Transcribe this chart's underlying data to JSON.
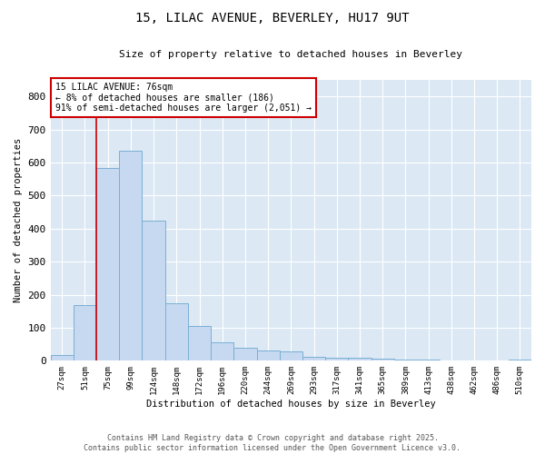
{
  "title_line1": "15, LILAC AVENUE, BEVERLEY, HU17 9UT",
  "title_line2": "Size of property relative to detached houses in Beverley",
  "xlabel": "Distribution of detached houses by size in Beverley",
  "ylabel": "Number of detached properties",
  "categories": [
    "27sqm",
    "51sqm",
    "75sqm",
    "99sqm",
    "124sqm",
    "148sqm",
    "172sqm",
    "196sqm",
    "220sqm",
    "244sqm",
    "269sqm",
    "293sqm",
    "317sqm",
    "341sqm",
    "365sqm",
    "389sqm",
    "413sqm",
    "438sqm",
    "462sqm",
    "486sqm",
    "510sqm"
  ],
  "values": [
    18,
    168,
    583,
    635,
    425,
    175,
    105,
    57,
    40,
    32,
    28,
    13,
    10,
    8,
    6,
    4,
    3,
    2,
    1,
    1,
    5
  ],
  "bar_color": "#c6d9f0",
  "bar_edge_color": "#7bafd4",
  "bar_width": 1.0,
  "vline_index": 2,
  "vline_color": "#cc0000",
  "annotation_line1": "15 LILAC AVENUE: 76sqm",
  "annotation_line2": "← 8% of detached houses are smaller (186)",
  "annotation_line3": "91% of semi-detached houses are larger (2,051) →",
  "annotation_box_color": "#ffffff",
  "annotation_box_edge": "#cc0000",
  "ylim": [
    0,
    850
  ],
  "yticks": [
    0,
    100,
    200,
    300,
    400,
    500,
    600,
    700,
    800
  ],
  "footnote_line1": "Contains HM Land Registry data © Crown copyright and database right 2025.",
  "footnote_line2": "Contains public sector information licensed under the Open Government Licence v3.0.",
  "plot_bg_color": "#dce9f5",
  "fig_bg_color": "#ffffff",
  "grid_color": "#ffffff"
}
